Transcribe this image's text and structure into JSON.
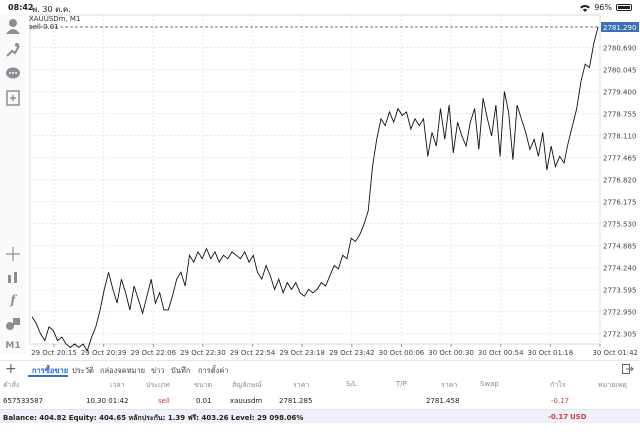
{
  "status_bar": {
    "time": "08:42",
    "date": "พ. 30 ต.ค.",
    "battery": "96%"
  },
  "chart": {
    "symbol": "XAUUSDm, M1",
    "order_label": "sell 0.01",
    "current_price": "2781.290",
    "price_labels": [
      "2780.690",
      "2780.045",
      "2779.400",
      "2778.755",
      "2778.110",
      "2777.465",
      "2776.820",
      "2776.175",
      "2775.530",
      "2774.885",
      "2774.240",
      "2773.595",
      "2772.950",
      "2772.305"
    ],
    "time_labels": [
      "29 Oct 20:15",
      "29 Oct 20:39",
      "29 Oct 22:06",
      "29 Oct 22:30",
      "29 Oct 22:54",
      "29 Oct 23:18",
      "29 Oct 23:42",
      "30 Oct 00:06",
      "30 Oct 00:30",
      "30 Oct 00:54",
      "30 Oct 01:18",
      "30 Oct 01:42"
    ],
    "colors": {
      "line": "#111111",
      "grid": "#e9e9e9",
      "order_line": "#4a8b5c",
      "price_tag": "#3b6fb6"
    }
  },
  "chart_data": {
    "type": "line",
    "title": "XAUUSDm, M1",
    "xlabel": "",
    "ylabel": "",
    "ylim": [
      2772.0,
      2781.29
    ],
    "x_ticks": [
      "29 Oct 20:15",
      "29 Oct 20:39",
      "29 Oct 22:06",
      "29 Oct 22:30",
      "29 Oct 22:54",
      "29 Oct 23:18",
      "29 Oct 23:42",
      "30 Oct 00:06",
      "30 Oct 00:30",
      "30 Oct 00:54",
      "30 Oct 01:18",
      "30 Oct 01:42"
    ],
    "series": [
      {
        "values": [
          2772.8,
          2772.6,
          2772.3,
          2772.1,
          2772.5,
          2772.4,
          2772.1,
          2772.2,
          2772.0,
          2771.9,
          2772.0,
          2771.9,
          2772.0,
          2771.8,
          2772.2,
          2772.5,
          2773.0,
          2773.6,
          2774.1,
          2773.6,
          2773.2,
          2773.9,
          2773.5,
          2773.0,
          2773.7,
          2773.3,
          2772.9,
          2773.4,
          2773.9,
          2773.2,
          2773.5,
          2773.0,
          2773.0,
          2773.4,
          2773.9,
          2774.1,
          2773.7,
          2774.6,
          2774.4,
          2774.7,
          2774.5,
          2774.8,
          2774.5,
          2774.7,
          2774.4,
          2774.6,
          2774.5,
          2774.7,
          2774.6,
          2774.5,
          2774.7,
          2774.4,
          2774.6,
          2774.1,
          2773.9,
          2774.3,
          2774.0,
          2773.6,
          2773.9,
          2773.5,
          2773.8,
          2773.6,
          2773.8,
          2773.5,
          2773.4,
          2773.6,
          2773.5,
          2773.6,
          2773.8,
          2773.7,
          2774.0,
          2774.3,
          2774.2,
          2774.6,
          2774.5,
          2775.1,
          2775.0,
          2775.2,
          2775.5,
          2775.9,
          2777.2,
          2778.0,
          2778.6,
          2778.4,
          2778.8,
          2778.5,
          2778.9,
          2778.7,
          2778.8,
          2778.3,
          2778.6,
          2778.4,
          2778.6,
          2777.5,
          2778.2,
          2777.8,
          2778.9,
          2778.0,
          2779.0,
          2777.6,
          2778.5,
          2778.1,
          2777.8,
          2778.5,
          2778.9,
          2777.7,
          2779.2,
          2778.6,
          2778.1,
          2779.0,
          2777.5,
          2779.4,
          2778.8,
          2777.4,
          2779.0,
          2778.6,
          2778.2,
          2777.7,
          2778.0,
          2777.5,
          2778.2,
          2777.1,
          2777.8,
          2777.2,
          2777.5,
          2777.3,
          2777.9,
          2778.4,
          2778.9,
          2779.7,
          2780.2,
          2780.1,
          2780.8,
          2781.29
        ]
      }
    ]
  },
  "tabs": [
    "การซื้อขาย",
    "ประวัติ",
    "กล่องจดหมาย",
    "ข่าว",
    "บันทึก",
    "การตั้งค่า"
  ],
  "table": {
    "headers": [
      "คำสั่ง",
      "เวลา",
      "ประเภท",
      "ขนาด",
      "สัญลักษณ์",
      "ราคา",
      "S/L",
      "T/P",
      "ราคา",
      "Swap",
      "กำไร",
      "หมายเหตุ"
    ],
    "rows": [
      {
        "order": "657533587",
        "time": "10.30 01:42",
        "type": "sell",
        "size": "0.01",
        "symbol": "xauusdm",
        "price": "2781.285",
        "sl": "",
        "tp": "",
        "current_price": "2781.458",
        "swap": "",
        "profit": "-0.17",
        "comment": ""
      }
    ]
  },
  "balance": {
    "summary": "Balance: 404.82 Equity: 404.65 หลักประกัน: 1.39 ฟรี: 403.26 Level: 29 098.06%",
    "profit": "-0.17",
    "currency": "USD"
  }
}
